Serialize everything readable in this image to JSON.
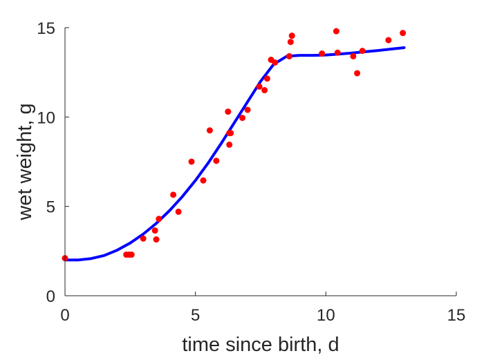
{
  "chart_data": {
    "type": "scatter",
    "title": "",
    "xlabel": "time since birth, d",
    "ylabel": "wet weight, g",
    "xlim": [
      0,
      15
    ],
    "ylim": [
      0,
      15
    ],
    "xticks": [
      0,
      5,
      10,
      15
    ],
    "yticks": [
      0,
      5,
      10,
      15
    ],
    "grid": false,
    "legend": "none",
    "colors": {
      "points": "#ff0000",
      "fit": "#0000ff",
      "axis": "#262626"
    },
    "series": [
      {
        "kind": "points",
        "x": [
          0.0,
          2.35,
          2.45,
          2.55,
          3.0,
          3.45,
          3.5,
          3.6,
          4.15,
          4.35,
          4.85,
          5.3,
          5.55,
          5.8,
          6.25,
          6.3,
          6.3,
          6.35,
          6.8,
          7.0,
          7.45,
          7.65,
          7.75,
          7.9,
          8.05,
          8.6,
          8.65,
          8.7,
          9.85,
          10.4,
          10.45,
          11.05,
          11.2,
          11.4,
          12.4,
          12.95
        ],
        "y": [
          2.1,
          2.3,
          2.3,
          2.3,
          3.2,
          3.65,
          3.15,
          4.3,
          5.65,
          4.7,
          7.5,
          6.45,
          9.25,
          7.55,
          10.3,
          9.1,
          8.45,
          9.1,
          9.95,
          10.4,
          11.7,
          11.5,
          12.15,
          13.2,
          13.05,
          13.4,
          14.2,
          14.55,
          13.55,
          14.8,
          13.6,
          13.4,
          12.45,
          13.7,
          14.3,
          14.7
        ]
      },
      {
        "kind": "line",
        "x": [
          0.0,
          0.5,
          1.0,
          1.5,
          2.0,
          2.5,
          3.0,
          3.5,
          4.0,
          4.5,
          5.0,
          5.5,
          6.0,
          6.5,
          7.0,
          7.5,
          8.0,
          8.5,
          9.0,
          9.5,
          10.0,
          10.5,
          11.0,
          11.5,
          12.0,
          12.5,
          13.0
        ],
        "y": [
          2.0,
          2.0,
          2.08,
          2.25,
          2.55,
          2.95,
          3.45,
          4.05,
          4.75,
          5.55,
          6.45,
          7.45,
          8.55,
          9.7,
          10.85,
          12.0,
          12.95,
          13.4,
          13.45,
          13.45,
          13.47,
          13.52,
          13.58,
          13.65,
          13.72,
          13.8,
          13.88
        ]
      }
    ]
  }
}
